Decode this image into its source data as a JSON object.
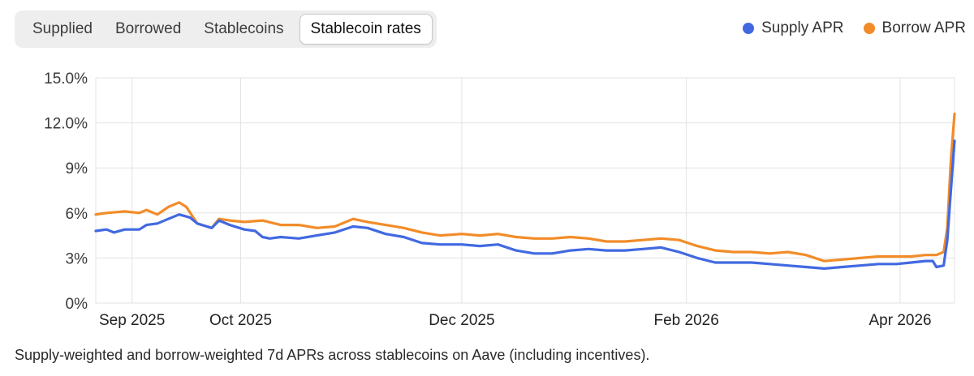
{
  "tabs": [
    {
      "label": "Supplied",
      "active": false
    },
    {
      "label": "Borrowed",
      "active": false
    },
    {
      "label": "Stablecoins",
      "active": false
    },
    {
      "label": "Stablecoin rates",
      "active": true
    }
  ],
  "legend": [
    {
      "label": "Supply APR",
      "color": "#4169e1"
    },
    {
      "label": "Borrow APR",
      "color": "#f28c28"
    }
  ],
  "caption": "Supply-weighted and borrow-weighted 7d APRs across stablecoins on Aave (including incentives).",
  "chart_data": {
    "type": "line",
    "title": "",
    "xlabel": "",
    "ylabel": "",
    "ylim": [
      0,
      15
    ],
    "yticks": [
      {
        "value": 15,
        "label": "15.0%"
      },
      {
        "value": 12,
        "label": "12.0%"
      },
      {
        "value": 9,
        "label": "9%"
      },
      {
        "value": 6,
        "label": "6%"
      },
      {
        "value": 3,
        "label": "3%"
      },
      {
        "value": 0,
        "label": "0%"
      }
    ],
    "xrange": [
      "2025-08-22",
      "2026-04-16"
    ],
    "xticks": [
      {
        "date": "2025-09-01",
        "label": "Sep 2025"
      },
      {
        "date": "2025-10-01",
        "label": "Oct 2025"
      },
      {
        "date": "2025-12-01",
        "label": "Dec 2025"
      },
      {
        "date": "2026-02-01",
        "label": "Feb 2026"
      },
      {
        "date": "2026-04-01",
        "label": "Apr 2026"
      }
    ],
    "grid": true,
    "legend_position": "top-right",
    "series": [
      {
        "name": "Supply APR",
        "color": "#4169e1",
        "points": [
          [
            "2025-08-22",
            4.8
          ],
          [
            "2025-08-25",
            4.9
          ],
          [
            "2025-08-27",
            4.7
          ],
          [
            "2025-08-30",
            4.9
          ],
          [
            "2025-09-03",
            4.9
          ],
          [
            "2025-09-05",
            5.2
          ],
          [
            "2025-09-08",
            5.3
          ],
          [
            "2025-09-11",
            5.6
          ],
          [
            "2025-09-14",
            5.9
          ],
          [
            "2025-09-17",
            5.7
          ],
          [
            "2025-09-19",
            5.3
          ],
          [
            "2025-09-23",
            5.0
          ],
          [
            "2025-09-25",
            5.5
          ],
          [
            "2025-09-28",
            5.2
          ],
          [
            "2025-10-02",
            4.9
          ],
          [
            "2025-10-05",
            4.8
          ],
          [
            "2025-10-07",
            4.4
          ],
          [
            "2025-10-09",
            4.3
          ],
          [
            "2025-10-12",
            4.4
          ],
          [
            "2025-10-17",
            4.3
          ],
          [
            "2025-10-22",
            4.5
          ],
          [
            "2025-10-27",
            4.7
          ],
          [
            "2025-11-01",
            5.1
          ],
          [
            "2025-11-05",
            5.0
          ],
          [
            "2025-11-10",
            4.6
          ],
          [
            "2025-11-15",
            4.4
          ],
          [
            "2025-11-20",
            4.0
          ],
          [
            "2025-11-25",
            3.9
          ],
          [
            "2025-12-01",
            3.9
          ],
          [
            "2025-12-06",
            3.8
          ],
          [
            "2025-12-11",
            3.9
          ],
          [
            "2025-12-16",
            3.5
          ],
          [
            "2025-12-21",
            3.3
          ],
          [
            "2025-12-26",
            3.3
          ],
          [
            "2025-12-31",
            3.5
          ],
          [
            "2026-01-05",
            3.6
          ],
          [
            "2026-01-10",
            3.5
          ],
          [
            "2026-01-15",
            3.5
          ],
          [
            "2026-01-20",
            3.6
          ],
          [
            "2026-01-25",
            3.7
          ],
          [
            "2026-01-30",
            3.4
          ],
          [
            "2026-02-04",
            3.0
          ],
          [
            "2026-02-09",
            2.7
          ],
          [
            "2026-02-14",
            2.7
          ],
          [
            "2026-02-19",
            2.7
          ],
          [
            "2026-02-24",
            2.6
          ],
          [
            "2026-03-01",
            2.5
          ],
          [
            "2026-03-06",
            2.4
          ],
          [
            "2026-03-11",
            2.3
          ],
          [
            "2026-03-16",
            2.4
          ],
          [
            "2026-03-21",
            2.5
          ],
          [
            "2026-03-26",
            2.6
          ],
          [
            "2026-03-31",
            2.6
          ],
          [
            "2026-04-04",
            2.7
          ],
          [
            "2026-04-08",
            2.8
          ],
          [
            "2026-04-10",
            2.8
          ],
          [
            "2026-04-11",
            2.4
          ],
          [
            "2026-04-13",
            2.5
          ],
          [
            "2026-04-14",
            4.2
          ],
          [
            "2026-04-15",
            7.5
          ],
          [
            "2026-04-16",
            10.8
          ]
        ]
      },
      {
        "name": "Borrow APR",
        "color": "#f28c28",
        "points": [
          [
            "2025-08-22",
            5.9
          ],
          [
            "2025-08-25",
            6.0
          ],
          [
            "2025-08-30",
            6.1
          ],
          [
            "2025-09-03",
            6.0
          ],
          [
            "2025-09-05",
            6.2
          ],
          [
            "2025-09-08",
            5.9
          ],
          [
            "2025-09-11",
            6.4
          ],
          [
            "2025-09-14",
            6.7
          ],
          [
            "2025-09-16",
            6.4
          ],
          [
            "2025-09-19",
            5.3
          ],
          [
            "2025-09-23",
            5.0
          ],
          [
            "2025-09-25",
            5.6
          ],
          [
            "2025-09-28",
            5.5
          ],
          [
            "2025-10-02",
            5.4
          ],
          [
            "2025-10-07",
            5.5
          ],
          [
            "2025-10-12",
            5.2
          ],
          [
            "2025-10-17",
            5.2
          ],
          [
            "2025-10-22",
            5.0
          ],
          [
            "2025-10-27",
            5.1
          ],
          [
            "2025-11-01",
            5.6
          ],
          [
            "2025-11-05",
            5.4
          ],
          [
            "2025-11-10",
            5.2
          ],
          [
            "2025-11-15",
            5.0
          ],
          [
            "2025-11-20",
            4.7
          ],
          [
            "2025-11-25",
            4.5
          ],
          [
            "2025-12-01",
            4.6
          ],
          [
            "2025-12-06",
            4.5
          ],
          [
            "2025-12-11",
            4.6
          ],
          [
            "2025-12-16",
            4.4
          ],
          [
            "2025-12-21",
            4.3
          ],
          [
            "2025-12-26",
            4.3
          ],
          [
            "2025-12-31",
            4.4
          ],
          [
            "2026-01-05",
            4.3
          ],
          [
            "2026-01-10",
            4.1
          ],
          [
            "2026-01-15",
            4.1
          ],
          [
            "2026-01-20",
            4.2
          ],
          [
            "2026-01-25",
            4.3
          ],
          [
            "2026-01-30",
            4.2
          ],
          [
            "2026-02-04",
            3.8
          ],
          [
            "2026-02-09",
            3.5
          ],
          [
            "2026-02-14",
            3.4
          ],
          [
            "2026-02-19",
            3.4
          ],
          [
            "2026-02-24",
            3.3
          ],
          [
            "2026-03-01",
            3.4
          ],
          [
            "2026-03-06",
            3.2
          ],
          [
            "2026-03-11",
            2.8
          ],
          [
            "2026-03-16",
            2.9
          ],
          [
            "2026-03-21",
            3.0
          ],
          [
            "2026-03-26",
            3.1
          ],
          [
            "2026-03-31",
            3.1
          ],
          [
            "2026-04-04",
            3.1
          ],
          [
            "2026-04-08",
            3.2
          ],
          [
            "2026-04-11",
            3.2
          ],
          [
            "2026-04-13",
            3.4
          ],
          [
            "2026-04-14",
            5.0
          ],
          [
            "2026-04-15",
            9.5
          ],
          [
            "2026-04-16",
            12.6
          ]
        ]
      }
    ]
  }
}
